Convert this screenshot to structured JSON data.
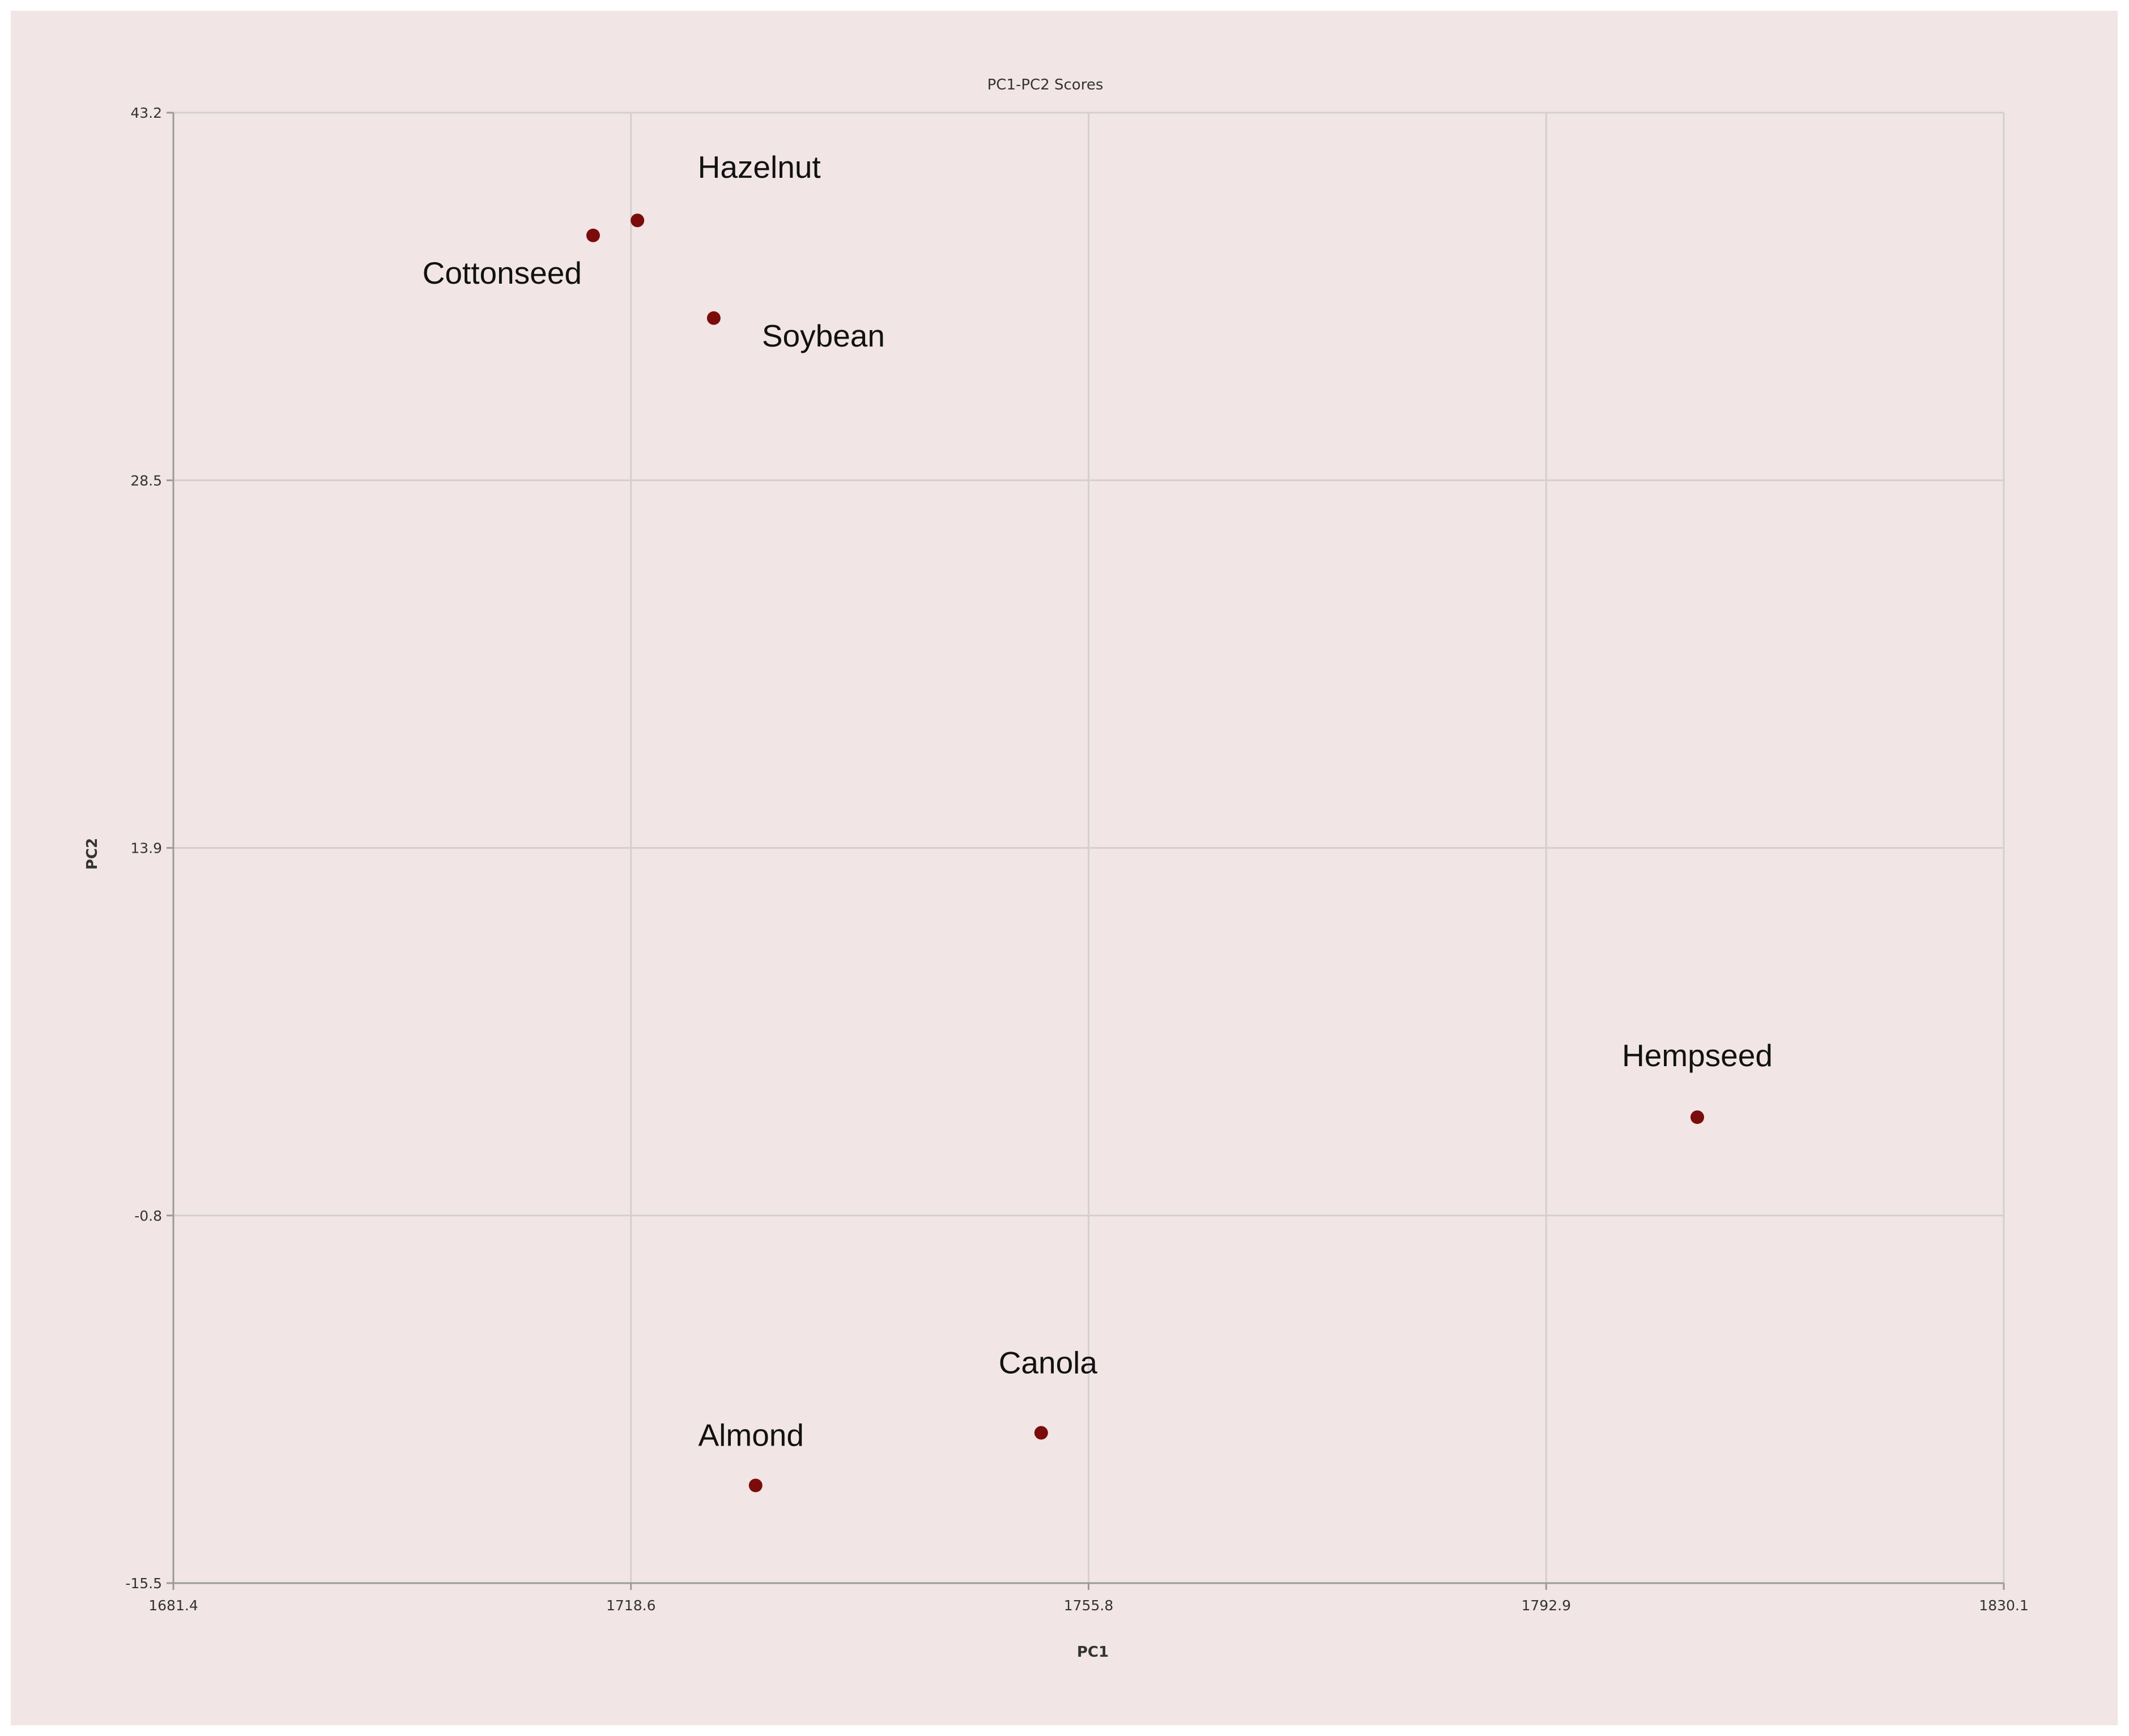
{
  "chart_data": {
    "type": "scatter",
    "title": "PC1-PC2 Scores",
    "xlabel": "PC1",
    "ylabel": "PC2",
    "xlim": [
      1681.4,
      1830.1
    ],
    "ylim": [
      -15.5,
      43.2
    ],
    "x_ticks": [
      "1681.4",
      "1718.6",
      "1755.8",
      "1792.9",
      "1830.1"
    ],
    "y_ticks": [
      "43.2",
      "28.5",
      "13.9",
      "-0.8",
      "-15.5"
    ],
    "grid": true,
    "point_color": "#7b0c0c",
    "points": [
      {
        "label": "Hazelnut",
        "x": 1719.1,
        "y": 38.9
      },
      {
        "label": "Cottonseed",
        "x": 1715.5,
        "y": 38.3
      },
      {
        "label": "Soybean",
        "x": 1725.3,
        "y": 35.0
      },
      {
        "label": "Hempseed",
        "x": 1805.2,
        "y": 3.1
      },
      {
        "label": "Canola",
        "x": 1751.9,
        "y": -9.5
      },
      {
        "label": "Almond",
        "x": 1728.7,
        "y": -11.6
      }
    ]
  }
}
